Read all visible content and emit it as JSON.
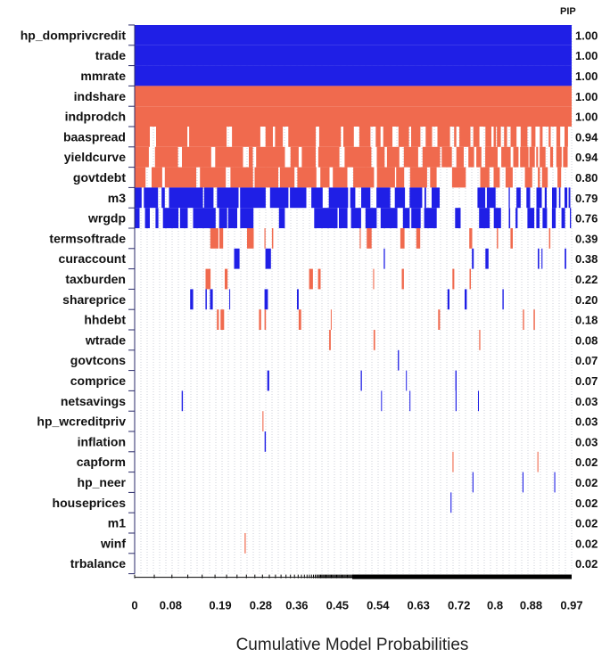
{
  "chart_data": {
    "type": "heatmap",
    "xlabel": "Cumulative Model Probabilities",
    "pip_header": "PIP",
    "x_ticks": [
      "0",
      "0.08",
      "0.19",
      "0.28",
      "0.36",
      "0.45",
      "0.54",
      "0.63",
      "0.72",
      "0.8",
      "0.88",
      "0.97"
    ],
    "x_tick_values": [
      0,
      0.08,
      0.19,
      0.28,
      0.36,
      0.45,
      0.54,
      0.63,
      0.72,
      0.8,
      0.88,
      0.97
    ],
    "xlim": [
      0,
      0.97
    ],
    "grid": true,
    "colors": {
      "positive": "#1f1fe6",
      "negative": "#f06a4e",
      "grid": "#9aa0b4",
      "axis": "#2a2a6a"
    },
    "variables": [
      {
        "name": "hp_domprivcredit",
        "pip": "1.00",
        "sign": "positive"
      },
      {
        "name": "trade",
        "pip": "1.00",
        "sign": "positive"
      },
      {
        "name": "mmrate",
        "pip": "1.00",
        "sign": "positive"
      },
      {
        "name": "indshare",
        "pip": "1.00",
        "sign": "negative"
      },
      {
        "name": "indprodch",
        "pip": "1.00",
        "sign": "negative"
      },
      {
        "name": "baaspread",
        "pip": "0.94",
        "sign": "negative"
      },
      {
        "name": "yieldcurve",
        "pip": "0.94",
        "sign": "negative"
      },
      {
        "name": "govtdebt",
        "pip": "0.80",
        "sign": "negative"
      },
      {
        "name": "m3",
        "pip": "0.79",
        "sign": "positive"
      },
      {
        "name": "wrgdp",
        "pip": "0.76",
        "sign": "positive"
      },
      {
        "name": "termsoftrade",
        "pip": "0.39",
        "sign": "negative"
      },
      {
        "name": "curaccount",
        "pip": "0.38",
        "sign": "positive"
      },
      {
        "name": "taxburden",
        "pip": "0.22",
        "sign": "negative"
      },
      {
        "name": "shareprice",
        "pip": "0.20",
        "sign": "positive"
      },
      {
        "name": "hhdebt",
        "pip": "0.18",
        "sign": "negative"
      },
      {
        "name": "wtrade",
        "pip": "0.08",
        "sign": "negative"
      },
      {
        "name": "govtcons",
        "pip": "0.07",
        "sign": "positive"
      },
      {
        "name": "comprice",
        "pip": "0.07",
        "sign": "positive"
      },
      {
        "name": "netsavings",
        "pip": "0.03",
        "sign": "positive"
      },
      {
        "name": "hp_wcreditpriv",
        "pip": "0.03",
        "sign": "negative"
      },
      {
        "name": "inflation",
        "pip": "0.03",
        "sign": "positive"
      },
      {
        "name": "capform",
        "pip": "0.02",
        "sign": "negative"
      },
      {
        "name": "hp_neer",
        "pip": "0.02",
        "sign": "positive"
      },
      {
        "name": "houseprices",
        "pip": "0.02",
        "sign": "positive"
      },
      {
        "name": "m1",
        "pip": "0.02",
        "sign": "positive"
      },
      {
        "name": "winf",
        "pip": "0.02",
        "sign": "negative"
      },
      {
        "name": "trbalance",
        "pip": "0.02",
        "sign": "positive"
      }
    ]
  }
}
